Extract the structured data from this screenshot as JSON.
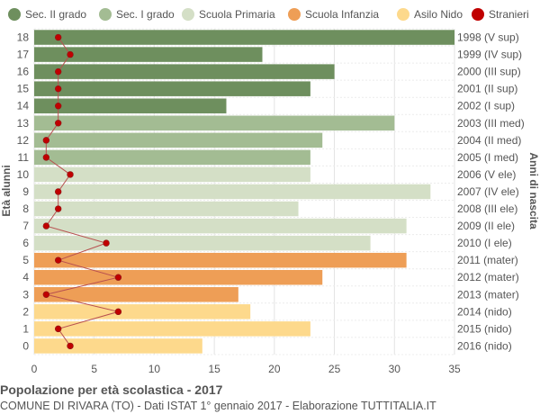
{
  "chart_data": {
    "type": "bar",
    "orientation": "horizontal",
    "title": "Popolazione per età scolastica - 2017",
    "subtitle": "COMUNE DI RIVARA (TO) - Dati ISTAT 1° gennaio 2017 - Elaborazione TUTTITALIA.IT",
    "ylabel": "Età alunni",
    "ylabel_right": "Anni di nascita",
    "xlim": [
      0,
      35
    ],
    "xticks": [
      0,
      5,
      10,
      15,
      20,
      25,
      30,
      35
    ],
    "grid": true,
    "legend_position": "top",
    "legend": [
      {
        "name": "Sec. II grado",
        "color": "#6e8f5e"
      },
      {
        "name": "Sec. I grado",
        "color": "#a3bc93"
      },
      {
        "name": "Scuola Primaria",
        "color": "#d4dfc6"
      },
      {
        "name": "Scuola Infanzia",
        "color": "#ee9e56"
      },
      {
        "name": "Asilo Nido",
        "color": "#fdd98c"
      },
      {
        "name": "Stranieri",
        "color": "#c00000"
      }
    ],
    "rows": [
      {
        "age": "18",
        "year": "1998 (V sup)",
        "value": 35,
        "stranieri": 2,
        "group": 0
      },
      {
        "age": "17",
        "year": "1999 (IV sup)",
        "value": 19,
        "stranieri": 3,
        "group": 0
      },
      {
        "age": "16",
        "year": "2000 (III sup)",
        "value": 25,
        "stranieri": 2,
        "group": 0
      },
      {
        "age": "15",
        "year": "2001 (II sup)",
        "value": 23,
        "stranieri": 2,
        "group": 0
      },
      {
        "age": "14",
        "year": "2002 (I sup)",
        "value": 16,
        "stranieri": 2,
        "group": 0
      },
      {
        "age": "13",
        "year": "2003 (III med)",
        "value": 30,
        "stranieri": 2,
        "group": 1
      },
      {
        "age": "12",
        "year": "2004 (II med)",
        "value": 24,
        "stranieri": 1,
        "group": 1
      },
      {
        "age": "11",
        "year": "2005 (I med)",
        "value": 23,
        "stranieri": 1,
        "group": 1
      },
      {
        "age": "10",
        "year": "2006 (V ele)",
        "value": 23,
        "stranieri": 3,
        "group": 2
      },
      {
        "age": "9",
        "year": "2007 (IV ele)",
        "value": 33,
        "stranieri": 2,
        "group": 2
      },
      {
        "age": "8",
        "year": "2008 (III ele)",
        "value": 22,
        "stranieri": 2,
        "group": 2
      },
      {
        "age": "7",
        "year": "2009 (II ele)",
        "value": 31,
        "stranieri": 1,
        "group": 2
      },
      {
        "age": "6",
        "year": "2010 (I ele)",
        "value": 28,
        "stranieri": 6,
        "group": 2
      },
      {
        "age": "5",
        "year": "2011 (mater)",
        "value": 31,
        "stranieri": 2,
        "group": 3
      },
      {
        "age": "4",
        "year": "2012 (mater)",
        "value": 24,
        "stranieri": 7,
        "group": 3
      },
      {
        "age": "3",
        "year": "2013 (mater)",
        "value": 17,
        "stranieri": 1,
        "group": 3
      },
      {
        "age": "2",
        "year": "2014 (nido)",
        "value": 18,
        "stranieri": 7,
        "group": 4
      },
      {
        "age": "1",
        "year": "2015 (nido)",
        "value": 23,
        "stranieri": 2,
        "group": 4
      },
      {
        "age": "0",
        "year": "2016 (nido)",
        "value": 14,
        "stranieri": 3,
        "group": 4
      }
    ]
  }
}
